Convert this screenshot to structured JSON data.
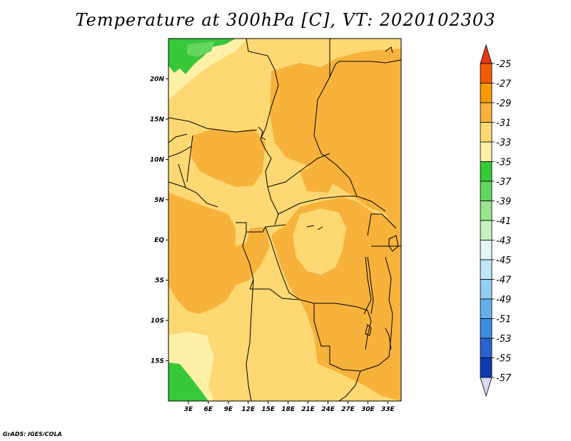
{
  "title": "Temperature at 300hPa [C], VT: 2020102303",
  "credit": "GrADS: IGES/COLA",
  "map": {
    "lon_range": [
      0,
      35
    ],
    "lat_range": [
      -20,
      25
    ],
    "lat_ticks": [
      {
        "value": 20,
        "label": "20N"
      },
      {
        "value": 15,
        "label": "15N"
      },
      {
        "value": 10,
        "label": "10N"
      },
      {
        "value": 5,
        "label": "5N"
      },
      {
        "value": 0,
        "label": "EQ"
      },
      {
        "value": -5,
        "label": "5S"
      },
      {
        "value": -10,
        "label": "10S"
      },
      {
        "value": -15,
        "label": "15S"
      }
    ],
    "lon_ticks": [
      {
        "value": 3,
        "label": "3E"
      },
      {
        "value": 6,
        "label": "6E"
      },
      {
        "value": 9,
        "label": "9E"
      },
      {
        "value": 12,
        "label": "12E"
      },
      {
        "value": 15,
        "label": "15E"
      },
      {
        "value": 18,
        "label": "18E"
      },
      {
        "value": 21,
        "label": "21E"
      },
      {
        "value": 24,
        "label": "24E"
      },
      {
        "value": 27,
        "label": "27E"
      },
      {
        "value": 30,
        "label": "30E"
      },
      {
        "value": 33,
        "label": "33E"
      }
    ]
  },
  "colorbar": {
    "labels": [
      "-25",
      "-27",
      "-29",
      "-31",
      "-33",
      "-35",
      "-37",
      "-39",
      "-41",
      "-43",
      "-45",
      "-47",
      "-49",
      "-51",
      "-53",
      "-55",
      "-57"
    ],
    "colors": [
      "#e53a14",
      "#f25c00",
      "#f59a00",
      "#f7b23c",
      "#fdd873",
      "#fff0a8",
      "#37c83a",
      "#63d560",
      "#98e48e",
      "#c7f1c0",
      "#e5f7f8",
      "#bfe6f6",
      "#94cdf2",
      "#64afea",
      "#3f8be0",
      "#2a62cc",
      "#0f3cae",
      "#0b1b84",
      "#d8d8f4"
    ]
  }
}
